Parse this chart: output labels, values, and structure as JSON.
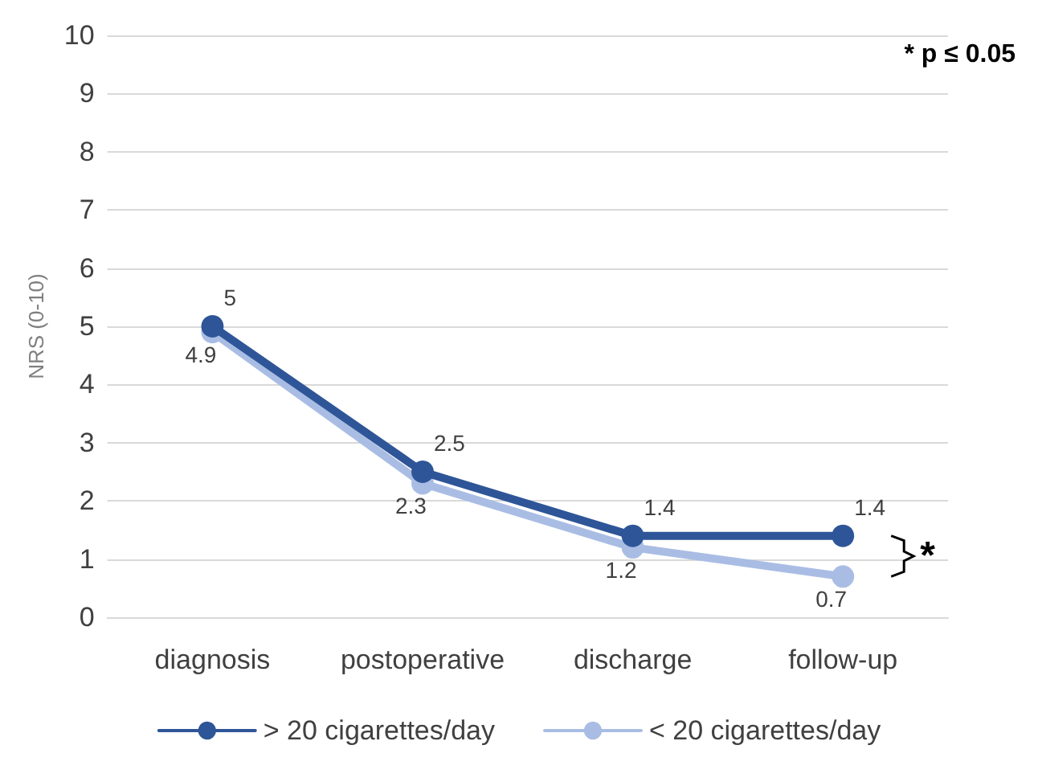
{
  "chart_data": {
    "type": "line",
    "ylabel": "NRS (0-10)",
    "categories": [
      "diagnosis",
      "postoperative",
      "discharge",
      "follow-up"
    ],
    "series": [
      {
        "name": "> 20 cigarettes/day",
        "color": "#2e5597",
        "values": [
          5,
          2.5,
          1.4,
          1.4
        ]
      },
      {
        "name": "< 20 cigarettes/day",
        "color": "#a9bde4",
        "values": [
          4.9,
          2.3,
          1.2,
          0.7
        ]
      }
    ],
    "ylim": [
      0,
      10
    ],
    "yticks": [
      0,
      1,
      2,
      3,
      4,
      5,
      6,
      7,
      8,
      9,
      10
    ],
    "grid": "y",
    "legend": "bottom",
    "marker": "circle",
    "line_style": "solid",
    "data_labels": true,
    "annotations": [
      "* p ≤ 0.05",
      "*"
    ]
  }
}
